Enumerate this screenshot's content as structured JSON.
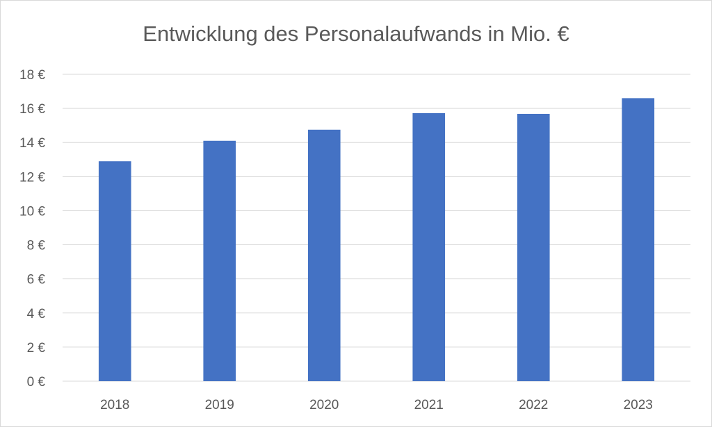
{
  "chart_data": {
    "type": "bar",
    "title": "Entwicklung des Personalaufwands in Mio. €",
    "xlabel": "",
    "ylabel": "",
    "categories": [
      "2018",
      "2019",
      "2020",
      "2021",
      "2022",
      "2023"
    ],
    "values": [
      12.9,
      14.1,
      14.75,
      15.72,
      15.68,
      16.6
    ],
    "ylim": [
      0,
      18
    ],
    "yticks": [
      0,
      2,
      4,
      6,
      8,
      10,
      12,
      14,
      16,
      18
    ],
    "ytick_labels": [
      "0 €",
      "2 €",
      "4 €",
      "6 €",
      "8 €",
      "10 €",
      "12 €",
      "14 €",
      "16 €",
      "18 €"
    ],
    "grid": true,
    "legend": "none",
    "bar_color": "#4472C4"
  }
}
